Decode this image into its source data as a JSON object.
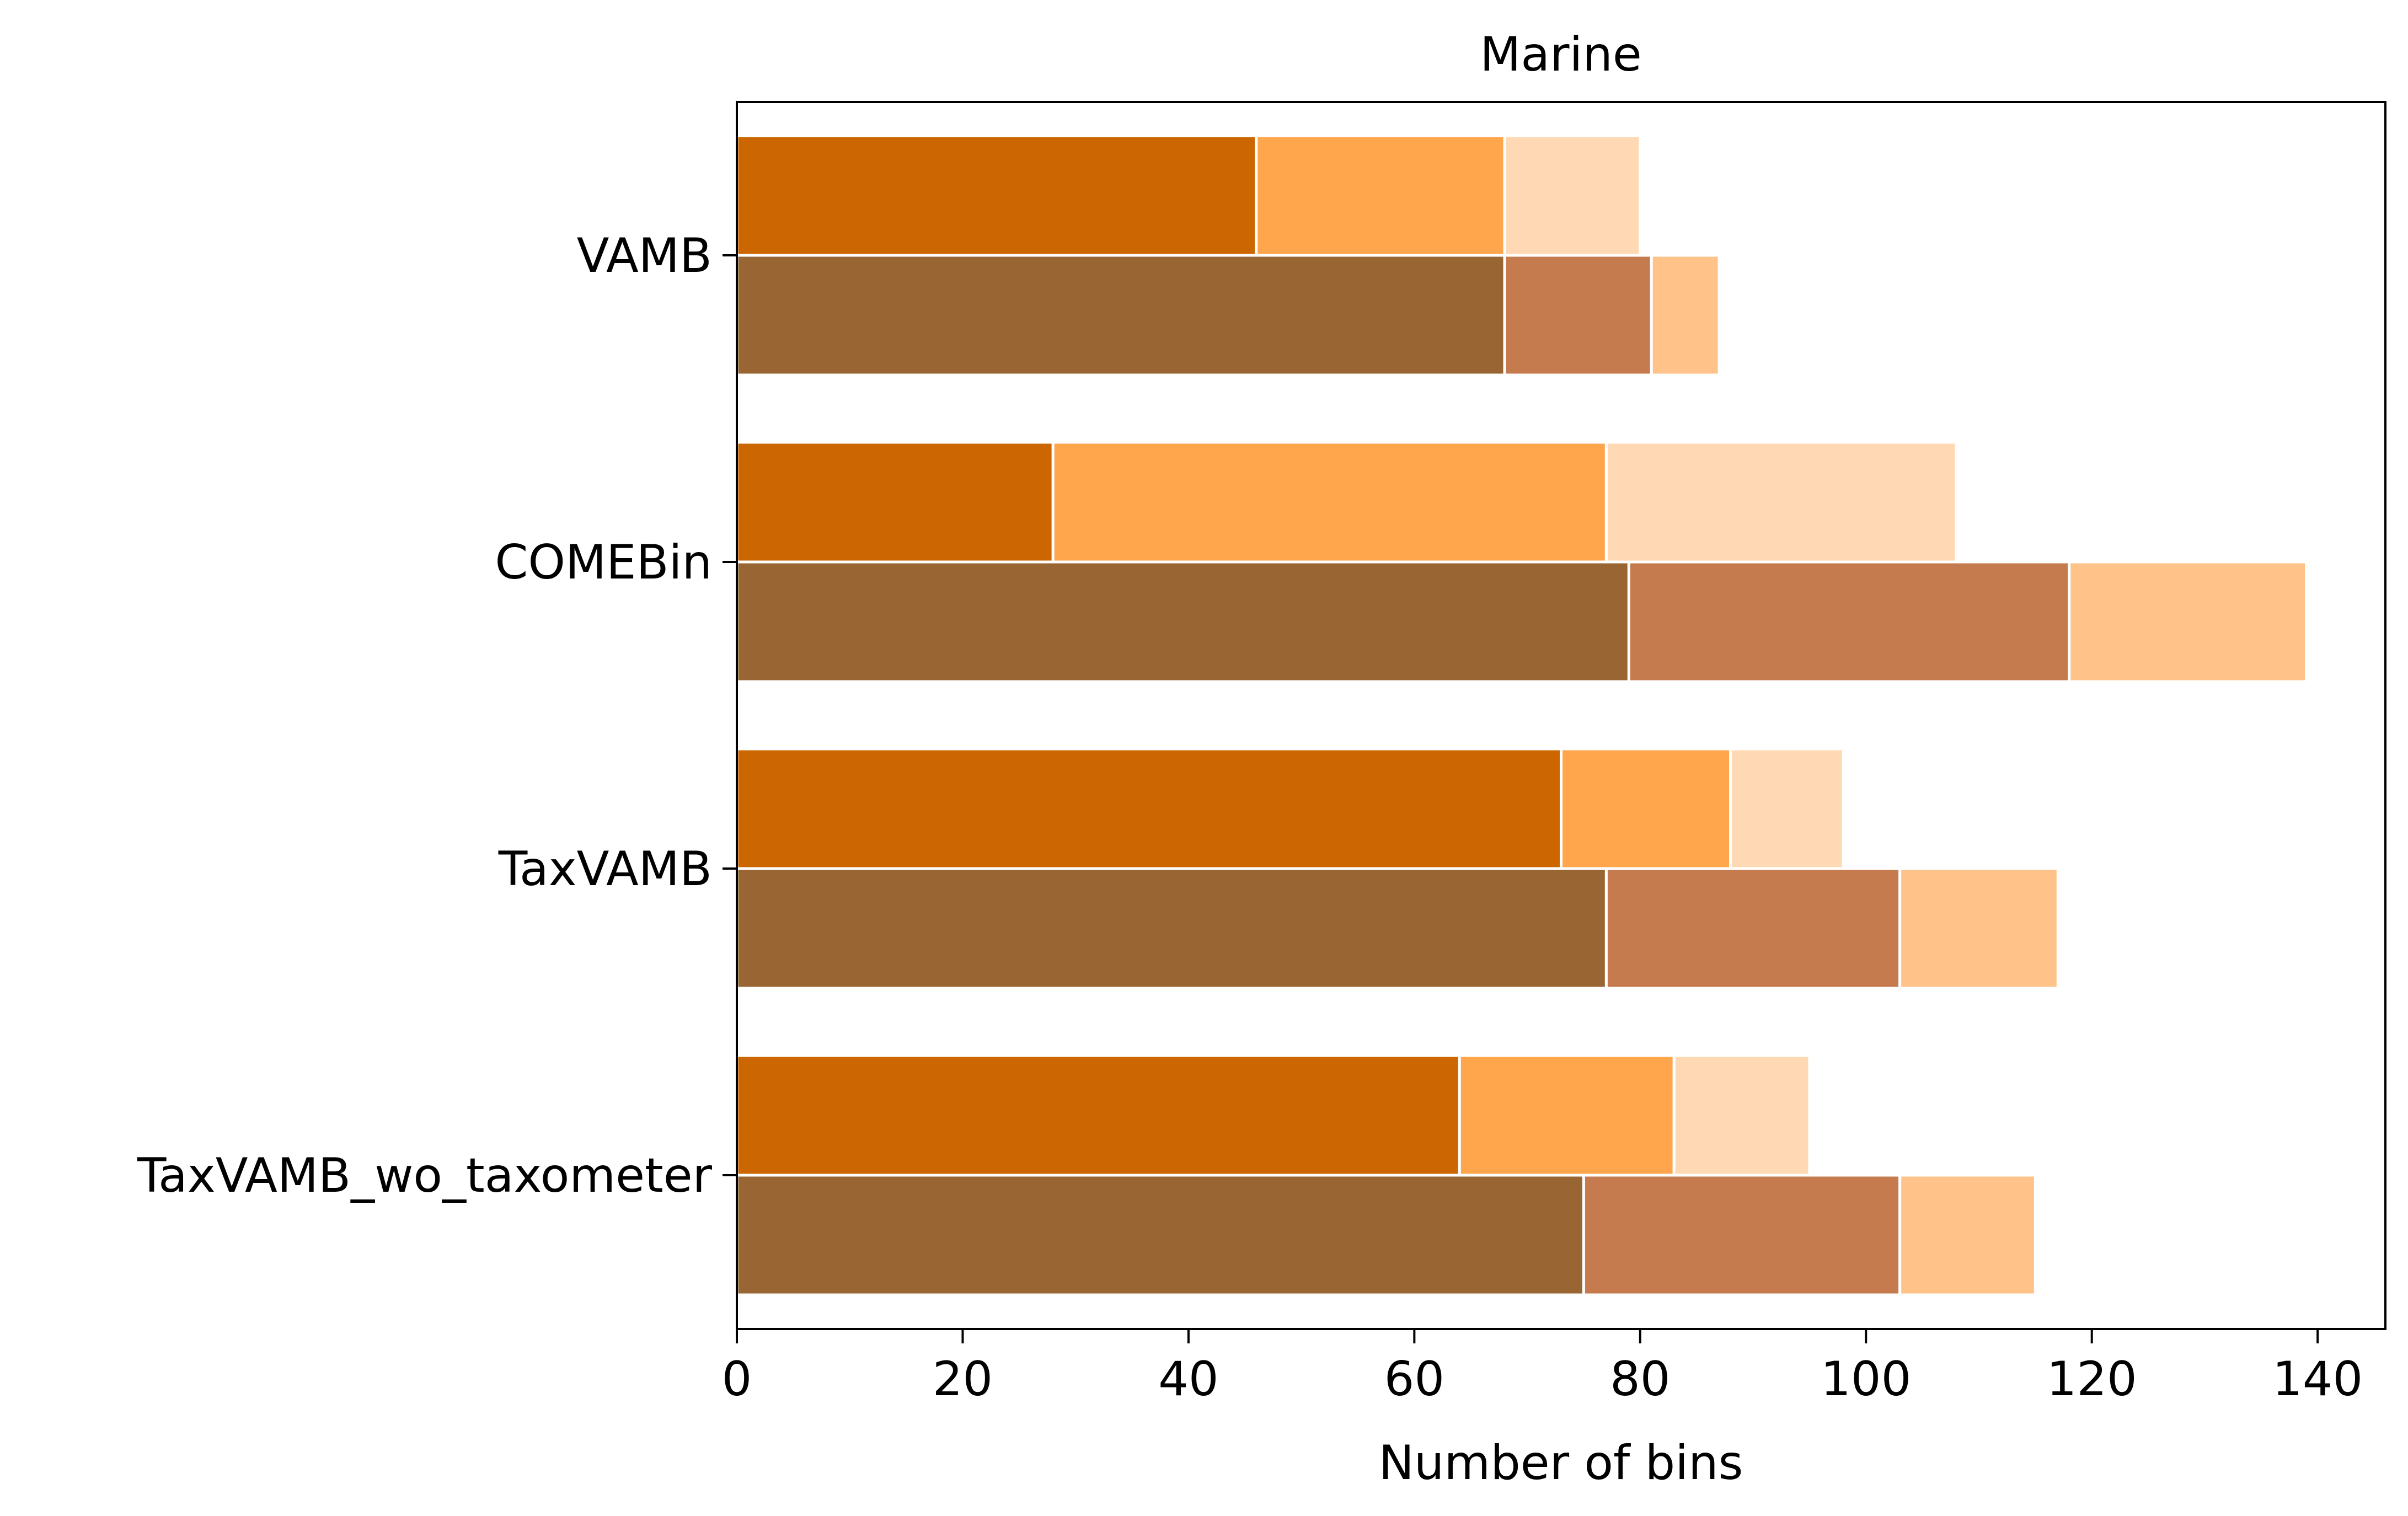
{
  "chart_data": {
    "type": "bar",
    "orientation": "horizontal",
    "stacked": true,
    "title": "Marine",
    "xlabel": "Number of bins",
    "ylabel": "",
    "xlim": [
      0,
      146
    ],
    "xticks": [
      "0",
      "20",
      "40",
      "60",
      "80",
      "100",
      "120",
      "140"
    ],
    "categories": [
      "VAMB",
      "COMEBin",
      "TaxVAMB",
      "TaxVAMB_wo_taxometer"
    ],
    "grid": false,
    "legend": "none",
    "groups": [
      {
        "stack_colors": [
          "#cc6600",
          "#ffa64d",
          "#ffd9b3"
        ],
        "segments": [
          [
            46,
            22,
            12
          ],
          [
            28,
            49,
            31
          ],
          [
            73,
            15,
            10
          ],
          [
            64,
            19,
            12
          ]
        ],
        "cumulative_totals": [
          [
            46,
            68,
            80
          ],
          [
            28,
            77,
            108
          ],
          [
            73,
            88,
            98
          ],
          [
            64,
            83,
            95
          ]
        ]
      },
      {
        "stack_colors": [
          "#996633",
          "#c67b4f",
          "#ffc38a"
        ],
        "segments": [
          [
            68,
            13,
            6
          ],
          [
            79,
            39,
            21
          ],
          [
            77,
            26,
            14
          ],
          [
            75,
            28,
            12
          ]
        ],
        "cumulative_totals": [
          [
            68,
            81,
            87
          ],
          [
            79,
            118,
            139
          ],
          [
            77,
            103,
            117
          ],
          [
            75,
            103,
            115
          ]
        ]
      }
    ]
  }
}
